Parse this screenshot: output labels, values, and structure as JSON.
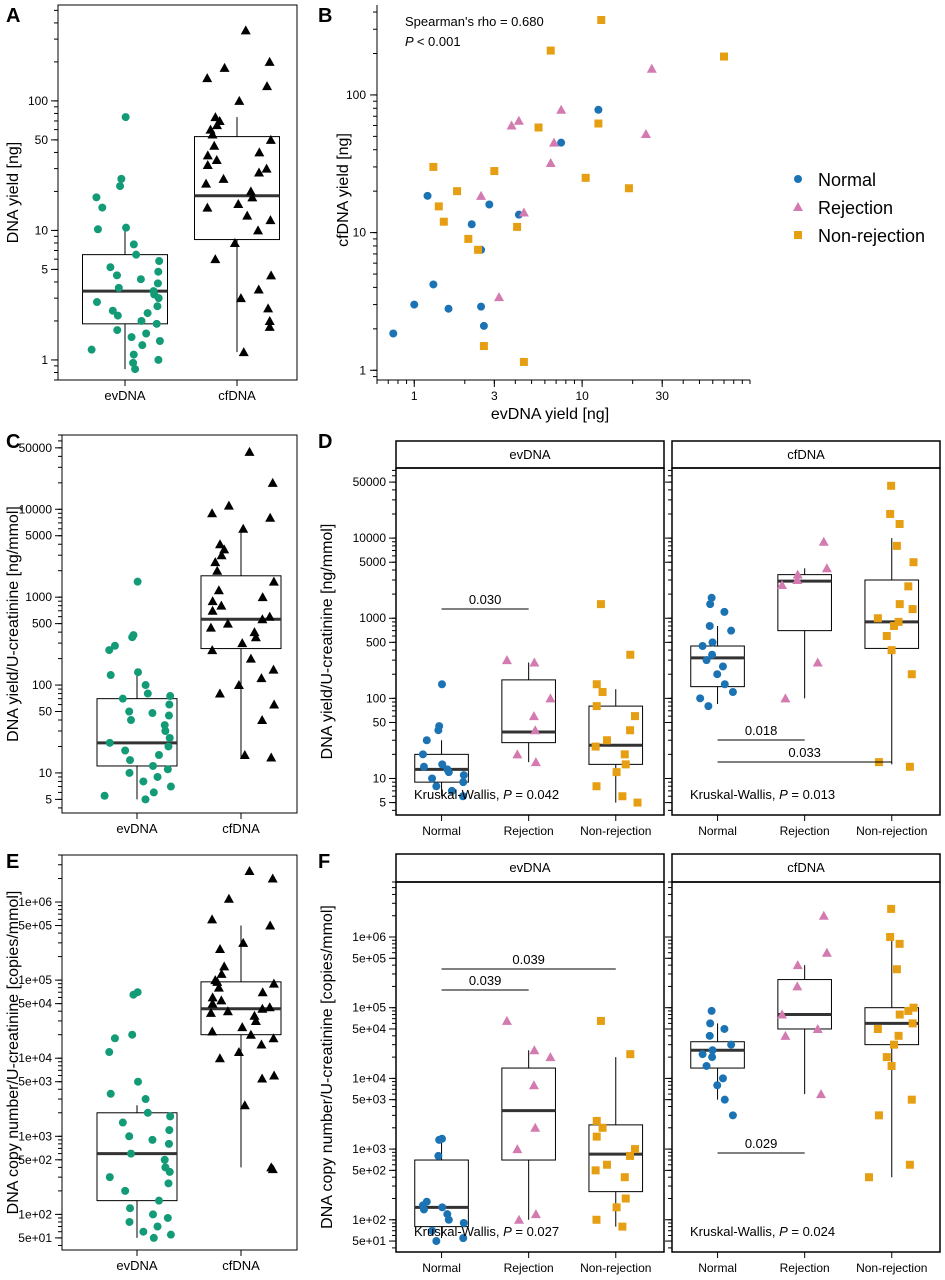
{
  "panel_letters": [
    "A",
    "B",
    "C",
    "D",
    "E",
    "F"
  ],
  "colors": {
    "evDNA": "#129b76",
    "cfDNA": "#000000",
    "Normal": "#1c73b4",
    "Rejection": "#d37ab0",
    "Non-rejection": "#e69f12",
    "box": "#000000",
    "median": "#333333"
  },
  "legend": {
    "items": [
      "Normal",
      "Rejection",
      "Non-rejection"
    ]
  },
  "chart_data": [
    {
      "id": "A",
      "type": "scatter",
      "scale": "log",
      "ylabel": "DNA yield [ng]",
      "categories": [
        "evDNA",
        "cfDNA"
      ],
      "yticks": [
        1,
        5,
        10,
        50,
        100
      ],
      "ytick_labels": [
        "1",
        "5",
        "10",
        "50",
        "100"
      ],
      "boxes": [
        {
          "q1": 1.9,
          "median": 3.4,
          "q3": 6.5,
          "whislo": 0.85,
          "whishi": 10.5
        },
        {
          "q1": 8.5,
          "median": 18.5,
          "q3": 53,
          "whislo": 1.15,
          "whishi": 75
        }
      ],
      "series": [
        {
          "name": "evDNA",
          "values": [
            75,
            25,
            22,
            15,
            18,
            10.5,
            10.2,
            7.8,
            6.5,
            5.8,
            5.2,
            4.8,
            4.5,
            4.2,
            3.9,
            3.6,
            3.4,
            3.2,
            3.0,
            2.8,
            2.6,
            2.4,
            2.3,
            2.2,
            2.0,
            1.9,
            1.7,
            1.6,
            1.5,
            1.4,
            1.3,
            1.2,
            1.1,
            1.0,
            0.95,
            0.85
          ]
        },
        {
          "name": "cfDNA",
          "values": [
            350,
            200,
            180,
            150,
            130,
            100,
            75,
            70,
            65,
            60,
            55,
            50,
            45,
            40,
            38,
            35,
            32,
            30,
            28,
            25,
            23,
            20,
            18,
            16,
            15,
            13,
            12,
            10,
            8,
            6,
            4.5,
            3.5,
            3.0,
            2.5,
            2.0,
            1.8,
            1.15
          ]
        }
      ]
    },
    {
      "id": "B",
      "type": "scatter",
      "scale": "log-log",
      "xlabel": "evDNA yield [ng]",
      "ylabel": "cfDNA yield [ng]",
      "xticks": [
        1,
        3,
        10,
        30
      ],
      "xtick_labels": [
        "1",
        "3",
        "10",
        "30"
      ],
      "yticks": [
        1,
        10,
        100
      ],
      "ytick_labels": [
        "1",
        "10",
        "100"
      ],
      "annotation": [
        "Spearman's rho = 0.680",
        "P < 0.001"
      ],
      "series": [
        {
          "name": "Normal",
          "points": [
            [
              0.75,
              1.85
            ],
            [
              1.0,
              3.0
            ],
            [
              1.3,
              4.2
            ],
            [
              1.2,
              18.5
            ],
            [
              1.6,
              2.8
            ],
            [
              2.2,
              11.5
            ],
            [
              2.5,
              2.9
            ],
            [
              2.6,
              2.1
            ],
            [
              2.8,
              16
            ],
            [
              2.5,
              7.5
            ],
            [
              4.2,
              13.5
            ],
            [
              7.5,
              45
            ],
            [
              12.5,
              78
            ]
          ]
        },
        {
          "name": "Rejection",
          "points": [
            [
              2.5,
              18.5
            ],
            [
              3.2,
              3.4
            ],
            [
              3.8,
              60
            ],
            [
              4.2,
              65
            ],
            [
              4.5,
              14
            ],
            [
              6.5,
              32
            ],
            [
              6.8,
              45
            ],
            [
              7.5,
              78
            ],
            [
              24,
              52
            ],
            [
              26,
              155
            ]
          ]
        },
        {
          "name": "Non-rejection",
          "points": [
            [
              1.3,
              30
            ],
            [
              1.4,
              15.5
            ],
            [
              1.5,
              12
            ],
            [
              1.8,
              20
            ],
            [
              2.1,
              9
            ],
            [
              2.4,
              7.5
            ],
            [
              3.0,
              28
            ],
            [
              2.6,
              1.5
            ],
            [
              4.1,
              11
            ],
            [
              4.5,
              1.15
            ],
            [
              5.5,
              58
            ],
            [
              6.5,
              210
            ],
            [
              10.5,
              25
            ],
            [
              12.5,
              62
            ],
            [
              13,
              350
            ],
            [
              19,
              21
            ],
            [
              70,
              190
            ]
          ]
        }
      ]
    },
    {
      "id": "C",
      "type": "scatter",
      "scale": "log",
      "ylabel": "DNA yield/U-creatinine [ng/mmol]",
      "categories": [
        "evDNA",
        "cfDNA"
      ],
      "yticks": [
        5,
        10,
        50,
        100,
        500,
        1000,
        5000,
        10000,
        50000
      ],
      "ytick_labels": [
        "5",
        "10",
        "50",
        "100",
        "500",
        "1000",
        "5000",
        "10000",
        "50000"
      ],
      "boxes": [
        {
          "q1": 12,
          "median": 22,
          "q3": 70,
          "whislo": 5,
          "whishi": 140
        },
        {
          "q1": 260,
          "median": 560,
          "q3": 1750,
          "whislo": 15,
          "whishi": 6000
        }
      ],
      "series": [
        {
          "name": "evDNA",
          "values": [
            1500,
            370,
            350,
            280,
            250,
            140,
            130,
            100,
            80,
            75,
            70,
            60,
            50,
            48,
            45,
            40,
            35,
            30,
            25,
            22,
            20,
            18,
            16,
            14,
            12,
            11,
            10,
            9,
            8,
            7,
            6,
            5.5,
            5
          ]
        },
        {
          "name": "cfDNA",
          "values": [
            45000,
            20000,
            11000,
            9000,
            8000,
            6000,
            4000,
            3500,
            3000,
            2500,
            2000,
            1500,
            1200,
            1000,
            900,
            800,
            700,
            600,
            560,
            500,
            450,
            400,
            350,
            300,
            250,
            200,
            150,
            120,
            100,
            80,
            60,
            40,
            16,
            15
          ]
        }
      ]
    },
    {
      "id": "D",
      "type": "scatter",
      "scale": "log",
      "ylabel": "DNA yield/U-creatinine [ng/mmol]",
      "categories": [
        "Normal",
        "Rejection",
        "Non-rejection"
      ],
      "facets": [
        "evDNA",
        "cfDNA"
      ],
      "yticks": [
        5,
        10,
        50,
        100,
        500,
        1000,
        5000,
        10000,
        50000
      ],
      "ytick_labels": [
        "5",
        "10",
        "50",
        "100",
        "500",
        "1000",
        "5000",
        "10000",
        "50000"
      ],
      "facet_data": [
        {
          "facet": "evDNA",
          "boxes": [
            {
              "q1": 9,
              "median": 13,
              "q3": 20,
              "whislo": 6,
              "whishi": 30
            },
            {
              "q1": 28,
              "median": 38,
              "q3": 170,
              "whislo": 16,
              "whishi": 280
            },
            {
              "q1": 15,
              "median": 26,
              "q3": 80,
              "whislo": 5,
              "whishi": 130
            }
          ],
          "values": [
            [
              150,
              45,
              40,
              30,
              20,
              15,
              14,
              13,
              12,
              11,
              10,
              9,
              8,
              7,
              6
            ],
            [
              300,
              280,
              100,
              60,
              40,
              20,
              16
            ],
            [
              1500,
              350,
              150,
              120,
              80,
              60,
              40,
              30,
              25,
              20,
              15,
              12,
              8,
              6,
              5
            ]
          ],
          "kruskal": [
            "Kruskal-Wallis, ",
            "P",
            " = 0.042"
          ],
          "brackets": [
            {
              "from": 0,
              "to": 1,
              "label": "0.030"
            }
          ]
        },
        {
          "facet": "cfDNA",
          "boxes": [
            {
              "q1": 140,
              "median": 320,
              "q3": 450,
              "whislo": 85,
              "whishi": 800
            },
            {
              "q1": 700,
              "median": 2900,
              "q3": 3500,
              "whislo": 100,
              "whishi": 4200
            },
            {
              "q1": 420,
              "median": 900,
              "q3": 3000,
              "whislo": 15,
              "whishi": 10000
            }
          ],
          "values": [
            [
              1800,
              1500,
              1200,
              800,
              700,
              500,
              450,
              350,
              300,
              250,
              200,
              150,
              120,
              100,
              80
            ],
            [
              9000,
              4200,
              3500,
              3000,
              2600,
              280,
              100
            ],
            [
              45000,
              20000,
              15000,
              8000,
              5000,
              2500,
              1500,
              1300,
              1000,
              900,
              800,
              600,
              400,
              200,
              16,
              14
            ]
          ],
          "kruskal": [
            "Kruskal-Wallis, ",
            "P",
            " = 0.013"
          ],
          "brackets": [
            {
              "from": 0,
              "to": 1,
              "label": "0.018"
            },
            {
              "from": 0,
              "to": 2,
              "label": "0.033"
            }
          ]
        }
      ]
    },
    {
      "id": "E",
      "type": "scatter",
      "scale": "log",
      "ylabel": "DNA copy number/U-creatinine [copies/mmol]",
      "categories": [
        "evDNA",
        "cfDNA"
      ],
      "yticks": [
        50,
        100,
        500,
        1000,
        5000,
        10000,
        50000,
        100000,
        500000,
        1000000
      ],
      "ytick_labels": [
        "5e+01",
        "1e+02",
        "5e+02",
        "1e+03",
        "5e+03",
        "1e+04",
        "5e+04",
        "1e+05",
        "5e+05",
        "1e+06"
      ],
      "boxes": [
        {
          "q1": 150,
          "median": 600,
          "q3": 2000,
          "whislo": 50,
          "whishi": 2500
        },
        {
          "q1": 20000,
          "median": 43000,
          "q3": 95000,
          "whislo": 400,
          "whishi": 500000
        }
      ],
      "series": [
        {
          "name": "evDNA",
          "values": [
            70000,
            65000,
            20000,
            18000,
            12000,
            5000,
            3500,
            3000,
            2000,
            1800,
            1500,
            1200,
            1000,
            900,
            800,
            600,
            500,
            400,
            350,
            300,
            250,
            200,
            150,
            120,
            100,
            90,
            80,
            70,
            60,
            55,
            50
          ]
        },
        {
          "name": "cfDNA",
          "values": [
            2500000,
            2000000,
            1100000,
            600000,
            500000,
            300000,
            250000,
            150000,
            120000,
            100000,
            95000,
            90000,
            80000,
            70000,
            60000,
            55000,
            50000,
            45000,
            43000,
            40000,
            38000,
            35000,
            30000,
            25000,
            22000,
            20000,
            18000,
            15000,
            12000,
            10000,
            6000,
            5500,
            2500,
            400,
            380
          ]
        }
      ]
    },
    {
      "id": "F",
      "type": "scatter",
      "scale": "log",
      "ylabel": "DNA copy number/U-creatinine [copies/mmol]",
      "categories": [
        "Normal",
        "Rejection",
        "Non-rejection"
      ],
      "facets": [
        "evDNA",
        "cfDNA"
      ],
      "yticks": [
        50,
        100,
        500,
        1000,
        5000,
        10000,
        50000,
        100000,
        500000,
        1000000
      ],
      "ytick_labels": [
        "5e+01",
        "1e+02",
        "5e+02",
        "1e+03",
        "5e+03",
        "1e+04",
        "5e+04",
        "1e+05",
        "5e+05",
        "1e+06"
      ],
      "facet_data": [
        {
          "facet": "evDNA",
          "boxes": [
            {
              "q1": 80,
              "median": 150,
              "q3": 700,
              "whislo": 55,
              "whishi": 1300
            },
            {
              "q1": 700,
              "median": 3500,
              "q3": 14000,
              "whislo": 100,
              "whishi": 25000
            },
            {
              "q1": 250,
              "median": 850,
              "q3": 2200,
              "whislo": 80,
              "whishi": 20000
            }
          ],
          "values": [
            [
              1400,
              1350,
              800,
              180,
              160,
              150,
              140,
              120,
              100,
              90,
              70,
              55,
              50
            ],
            [
              65000,
              25000,
              20000,
              8000,
              2000,
              1000,
              120,
              100
            ],
            [
              65000,
              22000,
              2500,
              2000,
              1500,
              1000,
              800,
              600,
              500,
              400,
              200,
              150,
              100,
              80
            ]
          ],
          "kruskal": [
            "Kruskal-Wallis, ",
            "P",
            " = 0.027"
          ],
          "brackets": [
            {
              "from": 0,
              "to": 1,
              "label": "0.039"
            },
            {
              "from": 0,
              "to": 2,
              "label": "0.039"
            }
          ]
        },
        {
          "facet": "cfDNA",
          "boxes": [
            {
              "q1": 14000,
              "median": 25000,
              "q3": 33000,
              "whislo": 5000,
              "whishi": 60000
            },
            {
              "q1": 50000,
              "median": 80000,
              "q3": 250000,
              "whislo": 6000,
              "whishi": 400000
            },
            {
              "q1": 30000,
              "median": 60000,
              "q3": 100000,
              "whislo": 400,
              "whishi": 1000000
            }
          ],
          "values": [
            [
              90000,
              60000,
              50000,
              40000,
              30000,
              25000,
              22000,
              20000,
              15000,
              10000,
              8000,
              5000,
              3000
            ],
            [
              2000000,
              600000,
              400000,
              200000,
              80000,
              50000,
              40000,
              6000
            ],
            [
              2500000,
              1000000,
              800000,
              350000,
              100000,
              90000,
              80000,
              60000,
              50000,
              40000,
              30000,
              20000,
              15000,
              5000,
              3000,
              600,
              400
            ]
          ],
          "kruskal": [
            "Kruskal-Wallis, ",
            "P",
            " = 0.024"
          ],
          "brackets": [
            {
              "from": 0,
              "to": 1,
              "label": "0.029"
            }
          ]
        }
      ]
    }
  ]
}
